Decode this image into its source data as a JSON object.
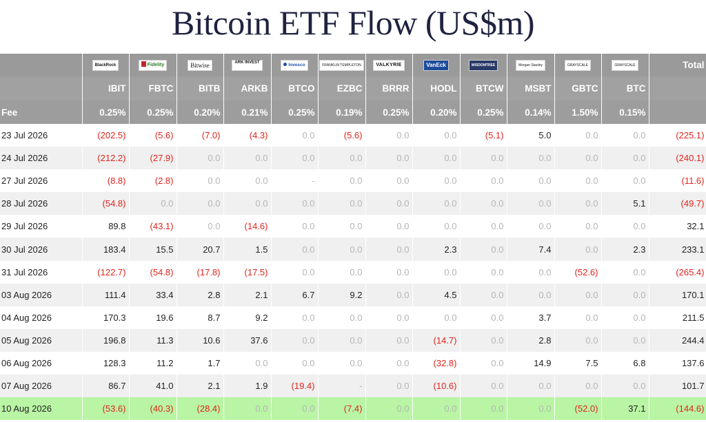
{
  "title": "Bitcoin ETF Flow (US$m)",
  "header": {
    "total_label": "Total",
    "fee_label": "Fee",
    "issuers": [
      "BlackRock",
      "Fidelity",
      "Bitwise",
      "ARK INVEST",
      "Invesco",
      "FRANKLIN TEMPLETON",
      "VALKYRIE",
      "VanEck",
      "WISDOMTREE",
      "Morgan Stanley",
      "GRAYSCALE",
      "GRAYSCALE"
    ],
    "tickers": [
      "IBIT",
      "FBTC",
      "BITB",
      "ARKB",
      "BTCO",
      "EZBC",
      "BRRR",
      "HODL",
      "BTCW",
      "MSBT",
      "GBTC",
      "BTC"
    ],
    "fees": [
      "0.25%",
      "0.25%",
      "0.20%",
      "0.21%",
      "0.25%",
      "0.19%",
      "0.25%",
      "0.20%",
      "0.25%",
      "0.14%",
      "1.50%",
      "0.15%"
    ]
  },
  "rows": [
    {
      "date": "23 Jul 2026",
      "values": [
        "(202.5)",
        "(5.6)",
        "(7.0)",
        "(4.3)",
        "0.0",
        "(5.6)",
        "0.0",
        "0.0",
        "(5.1)",
        "5.0",
        "0.0",
        "0.0"
      ],
      "total": "(225.1)"
    },
    {
      "date": "24 Jul 2026",
      "values": [
        "(212.2)",
        "(27.9)",
        "0.0",
        "0.0",
        "0.0",
        "0.0",
        "0.0",
        "0.0",
        "0.0",
        "0.0",
        "0.0",
        "0.0"
      ],
      "total": "(240.1)"
    },
    {
      "date": "27 Jul 2026",
      "values": [
        "(8.8)",
        "(2.8)",
        "0.0",
        "0.0",
        "-",
        "0.0",
        "0.0",
        "0.0",
        "0.0",
        "0.0",
        "0.0",
        "0.0"
      ],
      "total": "(11.6)"
    },
    {
      "date": "28 Jul 2026",
      "values": [
        "(54.8)",
        "0.0",
        "0.0",
        "0.0",
        "0.0",
        "0.0",
        "0.0",
        "0.0",
        "0.0",
        "0.0",
        "0.0",
        "5.1"
      ],
      "total": "(49.7)"
    },
    {
      "date": "29 Jul 2026",
      "values": [
        "89.8",
        "(43.1)",
        "0.0",
        "(14.6)",
        "0.0",
        "0.0",
        "0.0",
        "0.0",
        "0.0",
        "0.0",
        "0.0",
        "0.0"
      ],
      "total": "32.1"
    },
    {
      "date": "30 Jul 2026",
      "values": [
        "183.4",
        "15.5",
        "20.7",
        "1.5",
        "0.0",
        "0.0",
        "0.0",
        "2.3",
        "0.0",
        "7.4",
        "0.0",
        "2.3"
      ],
      "total": "233.1"
    },
    {
      "date": "31 Jul 2026",
      "values": [
        "(122.7)",
        "(54.8)",
        "(17.8)",
        "(17.5)",
        "0.0",
        "0.0",
        "0.0",
        "0.0",
        "0.0",
        "0.0",
        "(52.6)",
        "0.0"
      ],
      "total": "(265.4)"
    },
    {
      "date": "03 Aug 2026",
      "values": [
        "111.4",
        "33.4",
        "2.8",
        "2.1",
        "6.7",
        "9.2",
        "0.0",
        "4.5",
        "0.0",
        "0.0",
        "0.0",
        "0.0"
      ],
      "total": "170.1"
    },
    {
      "date": "04 Aug 2026",
      "values": [
        "170.3",
        "19.6",
        "8.7",
        "9.2",
        "0.0",
        "0.0",
        "0.0",
        "0.0",
        "0.0",
        "3.7",
        "0.0",
        "0.0"
      ],
      "total": "211.5"
    },
    {
      "date": "05 Aug 2026",
      "values": [
        "196.8",
        "11.3",
        "10.6",
        "37.6",
        "0.0",
        "0.0",
        "0.0",
        "(14.7)",
        "0.0",
        "2.8",
        "0.0",
        "0.0"
      ],
      "total": "244.4"
    },
    {
      "date": "06 Aug 2026",
      "values": [
        "128.3",
        "11.2",
        "1.7",
        "0.0",
        "0.0",
        "0.0",
        "0.0",
        "(32.8)",
        "0.0",
        "14.9",
        "7.5",
        "6.8"
      ],
      "total": "137.6"
    },
    {
      "date": "07 Aug 2026",
      "values": [
        "86.7",
        "41.0",
        "2.1",
        "1.9",
        "(19.4)",
        "-",
        "0.0",
        "(10.6)",
        "0.0",
        "0.0",
        "0.0",
        "0.0"
      ],
      "total": "101.7"
    },
    {
      "date": "10 Aug 2026",
      "values": [
        "(53.6)",
        "(40.3)",
        "(28.4)",
        "0.0",
        "0.0",
        "(7.4)",
        "0.0",
        "0.0",
        "0.0",
        "0.0",
        "(52.0)",
        "37.1"
      ],
      "total": "(144.6)"
    }
  ],
  "colors": {
    "negative": "#e0231c",
    "zero": "#b5b5b5",
    "header_bg": "#9d9d9d",
    "highlight_row": "#b9f5a4"
  }
}
